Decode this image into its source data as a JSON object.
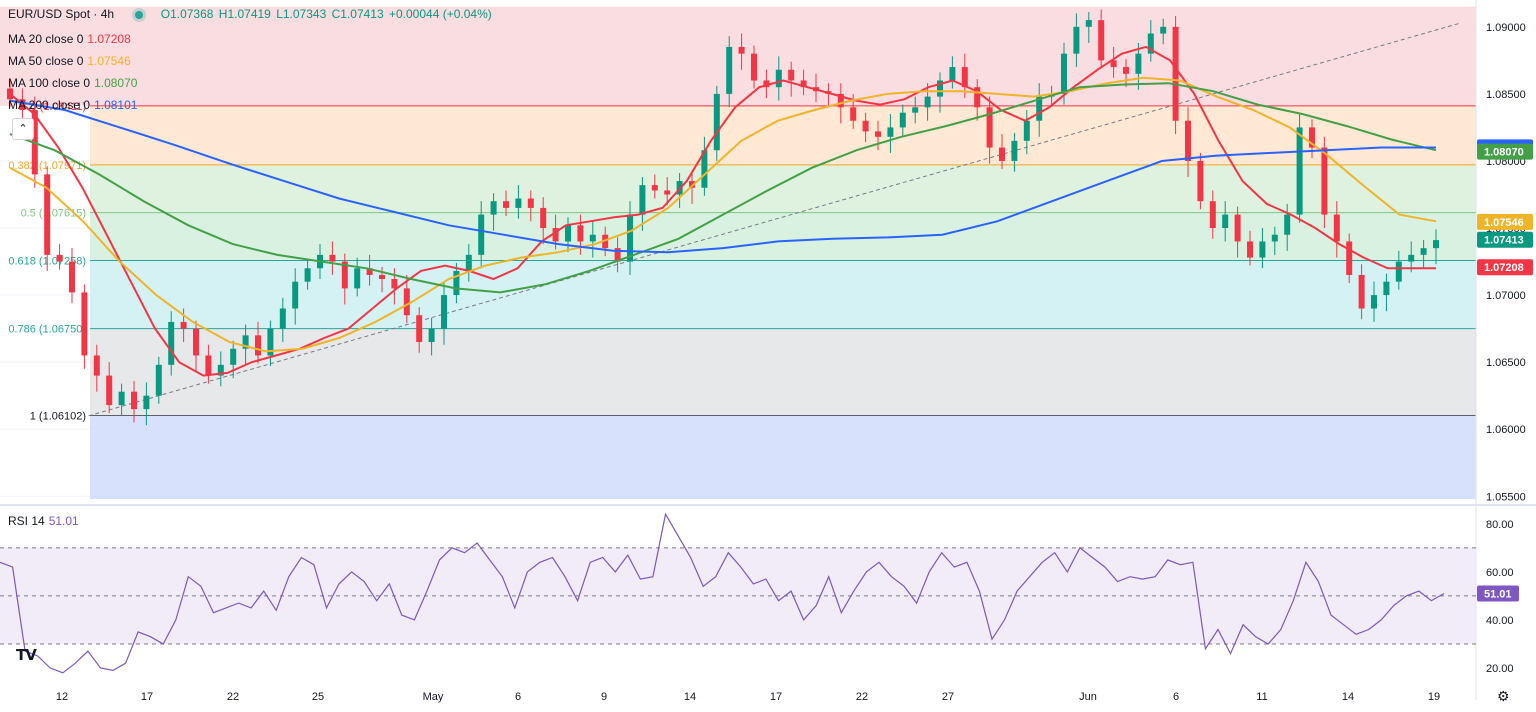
{
  "header": {
    "symbol": "EUR/USD Spot · 4h",
    "open": "O1.07368",
    "high": "H1.07419",
    "low": "L1.07343",
    "close": "C1.07413",
    "change": "+0.00044 (+0.04%)"
  },
  "indicators": [
    {
      "label": "MA 20 close 0",
      "value": "1.07208",
      "color": "#f23645"
    },
    {
      "label": "MA 50 close 0",
      "value": "1.07546",
      "color": "#f0b429"
    },
    {
      "label": "MA 100 close 0",
      "value": "1.08070",
      "color": "#43a047"
    },
    {
      "label": "MA 200 close 0",
      "value": "1.08101",
      "color": "#2962ff"
    }
  ],
  "rsi": {
    "label": "RSI 14",
    "value": "51.01",
    "color": "#7e57c2"
  },
  "colors": {
    "up": "#089981",
    "down": "#f23645",
    "grid": "#f0f3fa"
  },
  "icons": [
    "tradingview-logo-icon",
    "collapse-chevron-icon",
    "settings-gear-icon"
  ],
  "chart_data": [
    {
      "type": "candlestick",
      "title": "EUR/USD Spot · 4h",
      "x_tick_labels": [
        "12",
        "17",
        "22",
        "25",
        "May",
        "6",
        "9",
        "14",
        "17",
        "22",
        "27",
        "Jun",
        "6",
        "11",
        "14",
        "19"
      ],
      "y_tick_labels": [
        "1.09000",
        "1.08500",
        "1.08000",
        "1.07500",
        "1.07000",
        "1.06500",
        "1.06000",
        "1.05500"
      ],
      "ylim": [
        1.0545,
        1.092
      ],
      "grid": true,
      "fibonacci": {
        "levels": [
          {
            "label": "0 (1.08411)",
            "ratio": 0,
            "price": 1.08411
          },
          {
            "label": "0.382 (1.07971)",
            "ratio": 0.382,
            "price": 1.07971
          },
          {
            "label": "0.5 (1.07615)",
            "ratio": 0.5,
            "price": 1.07615
          },
          {
            "label": "0.618 (1.07258)",
            "ratio": 0.618,
            "price": 1.07258
          },
          {
            "label": "0.786 (1.06750)",
            "ratio": 0.786,
            "price": 1.0675
          },
          {
            "label": "1 (1.06102)",
            "ratio": 1,
            "price": 1.06102
          }
        ],
        "top_price": 1.0915,
        "bottom_price": 1.0548
      },
      "trendline": {
        "x_start": 0.06,
        "y_start": 1.061,
        "x_end": 0.99,
        "y_end": 1.0903
      },
      "price_labels": [
        {
          "text": "1.08101",
          "price": 1.08101,
          "color": "#2962ff"
        },
        {
          "text": "1.08070",
          "price": 1.0807,
          "color": "#43a047"
        },
        {
          "text": "1.07546",
          "price": 1.07546,
          "color": "#f0b429"
        },
        {
          "text": "1.07413",
          "price": 1.07413,
          "color": "#089981"
        },
        {
          "text": "1.07208",
          "price": 1.07208,
          "color": "#f23645"
        }
      ],
      "close_series": [
        1.0846,
        1.0838,
        1.079,
        1.073,
        1.0725,
        1.0702,
        1.0655,
        1.064,
        1.0618,
        1.0628,
        1.0615,
        1.0625,
        1.0648,
        1.068,
        1.0675,
        1.0655,
        1.064,
        1.0648,
        1.066,
        1.067,
        1.0655,
        1.0675,
        1.069,
        1.071,
        1.072,
        1.073,
        1.0725,
        1.0705,
        1.072,
        1.0715,
        1.0712,
        1.0705,
        1.0685,
        1.0665,
        1.0675,
        1.07,
        1.0718,
        1.073,
        1.076,
        1.077,
        1.0765,
        1.0772,
        1.0765,
        1.075,
        1.074,
        1.0752,
        1.074,
        1.0745,
        1.0735,
        1.0725,
        1.076,
        1.0782,
        1.0778,
        1.0775,
        1.0785,
        1.078,
        1.0808,
        1.085,
        1.0885,
        1.088,
        1.086,
        1.0855,
        1.0868,
        1.086,
        1.0855,
        1.0852,
        1.085,
        1.084,
        1.083,
        1.0822,
        1.0818,
        1.0825,
        1.0836,
        1.084,
        1.0848,
        1.086,
        1.087,
        1.0855,
        1.084,
        1.081,
        1.08,
        1.0815,
        1.083,
        1.0848,
        1.085,
        1.088,
        1.09,
        1.0905,
        1.0875,
        1.087,
        1.0865,
        1.088,
        1.0895,
        1.09,
        1.083,
        1.08,
        1.077,
        1.075,
        1.076,
        1.074,
        1.0728,
        1.074,
        1.0745,
        1.076,
        1.0825,
        1.081,
        1.076,
        1.074,
        1.0715,
        1.069,
        1.07,
        1.071,
        1.0725,
        1.073,
        1.0735,
        1.0741
      ],
      "ma_series": [
        {
          "name": "MA 20",
          "color": "#f23645",
          "values": [
            1.085,
            1.0835,
            1.081,
            1.078,
            1.0745,
            1.071,
            1.0675,
            1.065,
            1.064,
            1.0642,
            1.065,
            1.0655,
            1.066,
            1.0668,
            1.0675,
            1.069,
            1.0705,
            1.0718,
            1.0722,
            1.0718,
            1.0712,
            1.072,
            1.074,
            1.0752,
            1.0755,
            1.0758,
            1.076,
            1.0765,
            1.0785,
            1.0815,
            1.084,
            1.0855,
            1.086,
            1.0855,
            1.085,
            1.0845,
            1.0842,
            1.0846,
            1.0855,
            1.086,
            1.0852,
            1.0838,
            1.083,
            1.084,
            1.0855,
            1.0868,
            1.088,
            1.0885,
            1.0875,
            1.085,
            1.0815,
            1.0785,
            1.0768,
            1.076,
            1.075,
            1.0738,
            1.0728,
            1.072,
            1.072,
            1.072
          ]
        },
        {
          "name": "MA 50",
          "color": "#f0b429",
          "values": [
            1.0795,
            1.078,
            1.0755,
            1.0725,
            1.07,
            1.068,
            1.0665,
            1.0658,
            1.066,
            1.0668,
            1.068,
            1.0695,
            1.0712,
            1.0722,
            1.0728,
            1.0732,
            1.0738,
            1.0748,
            1.0765,
            1.079,
            1.0815,
            1.083,
            1.0838,
            1.0845,
            1.085,
            1.0852,
            1.0852,
            1.085,
            1.0848,
            1.0852,
            1.0858,
            1.0862,
            1.086,
            1.0848,
            1.0838,
            1.0825,
            1.0805,
            1.0782,
            1.076,
            1.0755
          ]
        },
        {
          "name": "MA 100",
          "color": "#43a047",
          "values": [
            1.082,
            1.0808,
            1.079,
            1.077,
            1.0752,
            1.0738,
            1.073,
            1.0725,
            1.072,
            1.0712,
            1.0705,
            1.0702,
            1.0708,
            1.0718,
            1.073,
            1.0742,
            1.076,
            1.0778,
            1.0795,
            1.0808,
            1.0818,
            1.0826,
            1.0835,
            1.0845,
            1.0855,
            1.0857,
            1.0858,
            1.0852,
            1.0842,
            1.0835,
            1.0826,
            1.0816,
            1.0808
          ]
        },
        {
          "name": "MA 200",
          "color": "#2962ff",
          "values": [
            1.0845,
            1.0838,
            1.0825,
            1.0812,
            1.0798,
            1.0785,
            1.0772,
            1.0762,
            1.0752,
            1.0745,
            1.0738,
            1.0733,
            1.0732,
            1.0735,
            1.074,
            1.0742,
            1.0743,
            1.0745,
            1.0755,
            1.077,
            1.0785,
            1.08,
            1.0804,
            1.0806,
            1.0808,
            1.081,
            1.081
          ]
        }
      ]
    },
    {
      "type": "line",
      "title": "RSI 14",
      "y_tick_labels": [
        "80.00",
        "60.00",
        "40.00",
        "20.00"
      ],
      "ylim": [
        15,
        87
      ],
      "bands": [
        30,
        50,
        70
      ],
      "last_value_label": "51.01",
      "values": [
        64,
        62,
        27,
        25,
        20,
        18,
        22,
        27,
        20,
        19,
        22,
        35,
        33,
        30,
        40,
        58,
        54,
        43,
        45,
        47,
        45,
        52,
        44,
        58,
        66,
        63,
        45,
        55,
        60,
        56,
        48,
        55,
        42,
        40,
        52,
        65,
        70,
        68,
        72,
        65,
        58,
        45,
        60,
        64,
        66,
        58,
        48,
        64,
        66,
        60,
        67,
        57,
        58,
        84,
        75,
        66,
        54,
        58,
        68,
        62,
        55,
        57,
        48,
        52,
        40,
        46,
        58,
        43,
        52,
        60,
        64,
        58,
        54,
        47,
        60,
        68,
        62,
        64,
        52,
        32,
        40,
        52,
        58,
        64,
        68,
        60,
        70,
        66,
        62,
        56,
        58,
        57,
        58,
        65,
        63,
        64,
        28,
        36,
        26,
        38,
        33,
        30,
        36,
        48,
        64,
        56,
        42,
        38,
        34,
        36,
        40,
        46,
        50,
        52,
        48,
        51
      ]
    }
  ]
}
